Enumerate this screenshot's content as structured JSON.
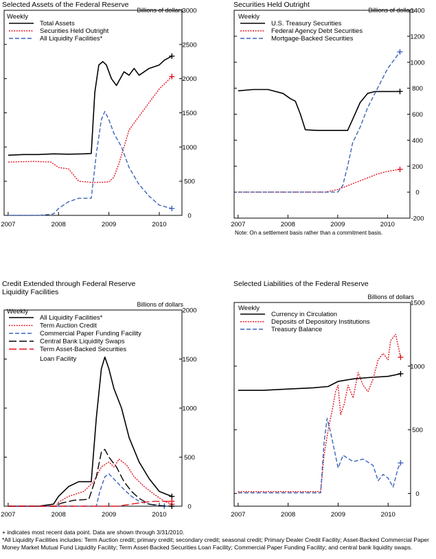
{
  "colors": {
    "black": "#000000",
    "red": "#e0141e",
    "blue": "#3b63b8"
  },
  "footnote_plus": "+ indicates most recent data point. Data are shown through 3/31/2010.",
  "footnote_liq": "*All Liquidity Facilities includes: Term Auction credit; primary credit; secondary credit; seasonal credit; Primary Dealer Credit Facility; Asset-Backed Commercial Paper Money Market Mutual Fund Liquidity Facility; Term Asset-Backed Securities Loan Facility; Commercial Paper Funding Facility; and central bank liquidity swaps.",
  "chart_data": [
    {
      "type": "line",
      "title": "Selected Assets of the Federal Reserve",
      "units": "Billions of dollars",
      "frequency": "Weekly",
      "ylim": [
        0,
        3000
      ],
      "yticks": [
        0,
        500,
        1000,
        1500,
        2000,
        2500,
        3000
      ],
      "xticks": [
        "2007",
        "2008",
        "2009",
        "2010"
      ],
      "series": [
        {
          "name": "Total Assets",
          "color": "black",
          "dash": "solid",
          "x": [
            2007.0,
            2007.3,
            2007.6,
            2007.9,
            2008.2,
            2008.5,
            2008.65,
            2008.72,
            2008.8,
            2008.88,
            2008.95,
            2009.05,
            2009.15,
            2009.3,
            2009.4,
            2009.5,
            2009.6,
            2009.8,
            2010.0,
            2010.1,
            2010.25
          ],
          "y": [
            880,
            890,
            890,
            900,
            895,
            900,
            905,
            1800,
            2200,
            2250,
            2200,
            2000,
            1900,
            2100,
            2050,
            2150,
            2050,
            2150,
            2200,
            2270,
            2330
          ]
        },
        {
          "name": "Securities Held Outright",
          "color": "red",
          "dash": "dotted",
          "x": [
            2007.0,
            2007.5,
            2007.85,
            2008.0,
            2008.2,
            2008.4,
            2008.7,
            2009.0,
            2009.1,
            2009.2,
            2009.3,
            2009.4,
            2009.6,
            2009.8,
            2010.0,
            2010.25
          ],
          "y": [
            780,
            790,
            780,
            700,
            680,
            500,
            480,
            490,
            560,
            760,
            1000,
            1250,
            1450,
            1650,
            1850,
            2030
          ]
        },
        {
          "name": "All Liquidity Facilities*",
          "color": "blue",
          "dash": "dashed",
          "x": [
            2007.0,
            2007.6,
            2007.9,
            2008.0,
            2008.2,
            2008.4,
            2008.65,
            2008.75,
            2008.85,
            2008.92,
            2009.0,
            2009.1,
            2009.25,
            2009.4,
            2009.6,
            2009.8,
            2010.0,
            2010.25
          ],
          "y": [
            0,
            0,
            20,
            100,
            200,
            250,
            250,
            900,
            1400,
            1520,
            1400,
            1200,
            1000,
            700,
            450,
            280,
            150,
            100
          ]
        }
      ]
    },
    {
      "type": "line",
      "title": "Securities Held Outright",
      "units": "Billions of dollars",
      "frequency": "Weekly",
      "ylim": [
        -200,
        1400
      ],
      "yticks": [
        -200,
        0,
        200,
        400,
        600,
        800,
        1000,
        1200,
        1400
      ],
      "xticks": [
        "2007",
        "2008",
        "2009",
        "2010"
      ],
      "note": "Note: On a settlement basis rather than a commitment basis.",
      "series": [
        {
          "name": "U.S. Treasury Securities",
          "color": "black",
          "dash": "solid",
          "x": [
            2007.0,
            2007.3,
            2007.6,
            2007.9,
            2008.05,
            2008.15,
            2008.25,
            2008.35,
            2008.6,
            2008.9,
            2009.2,
            2009.3,
            2009.45,
            2009.6,
            2009.75,
            2010.25
          ],
          "y": [
            780,
            790,
            790,
            760,
            720,
            700,
            600,
            480,
            475,
            475,
            475,
            560,
            690,
            760,
            775,
            775
          ]
        },
        {
          "name": "Federal Agency Debt Securities",
          "color": "red",
          "dash": "dotted",
          "x": [
            2007.0,
            2008.75,
            2009.0,
            2009.2,
            2009.4,
            2009.6,
            2009.8,
            2010.0,
            2010.25
          ],
          "y": [
            0,
            0,
            20,
            50,
            80,
            110,
            140,
            160,
            175
          ]
        },
        {
          "name": "Mortgage-Backed Securities",
          "color": "blue",
          "dash": "dashed",
          "x": [
            2007.0,
            2009.0,
            2009.1,
            2009.2,
            2009.3,
            2009.45,
            2009.6,
            2009.8,
            2010.0,
            2010.25
          ],
          "y": [
            0,
            0,
            50,
            200,
            380,
            500,
            650,
            800,
            950,
            1080
          ]
        }
      ]
    },
    {
      "type": "line",
      "title": "Credit Extended through Federal Reserve Liquidity Facilities",
      "title_lines": [
        "Credit Extended through Federal Reserve",
        "Liquidity Facilities"
      ],
      "units": "Billions of dollars",
      "frequency": "Weekly",
      "ylim": [
        0,
        2000
      ],
      "yticks": [
        0,
        500,
        1000,
        1500,
        2000
      ],
      "xticks": [
        "2007",
        "2008",
        "2009",
        "2010"
      ],
      "series": [
        {
          "name": "All Liquidity Facilities*",
          "color": "black",
          "dash": "solid",
          "x": [
            2007.0,
            2007.6,
            2007.9,
            2008.0,
            2008.2,
            2008.4,
            2008.65,
            2008.75,
            2008.85,
            2008.92,
            2009.0,
            2009.1,
            2009.25,
            2009.4,
            2009.6,
            2009.8,
            2010.0,
            2010.25
          ],
          "y": [
            0,
            0,
            20,
            100,
            200,
            250,
            250,
            900,
            1400,
            1520,
            1400,
            1200,
            1000,
            700,
            450,
            280,
            150,
            100
          ]
        },
        {
          "name": "Term Auction Credit",
          "color": "red",
          "dash": "dotted",
          "x": [
            2007.0,
            2007.95,
            2008.0,
            2008.2,
            2008.5,
            2008.7,
            2008.85,
            2009.0,
            2009.1,
            2009.2,
            2009.35,
            2009.5,
            2009.7,
            2009.9,
            2010.1,
            2010.25
          ],
          "y": [
            0,
            0,
            40,
            100,
            150,
            250,
            400,
            450,
            400,
            480,
            420,
            300,
            200,
            120,
            50,
            20
          ]
        },
        {
          "name": "Commercial Paper Funding Facility",
          "color": "blue",
          "dash": "dashed",
          "x": [
            2007.0,
            2008.75,
            2008.82,
            2008.92,
            2009.0,
            2009.15,
            2009.3,
            2009.45,
            2009.6,
            2009.8,
            2010.0,
            2010.1
          ],
          "y": [
            0,
            0,
            150,
            300,
            330,
            250,
            170,
            100,
            50,
            20,
            10,
            0
          ]
        },
        {
          "name": "Central Bank Liquidity Swaps",
          "color": "black",
          "dash": "longdash",
          "x": [
            2007.0,
            2007.95,
            2008.05,
            2008.3,
            2008.6,
            2008.75,
            2008.85,
            2008.92,
            2009.0,
            2009.15,
            2009.3,
            2009.45,
            2009.6,
            2009.8,
            2010.0,
            2010.25
          ],
          "y": [
            0,
            0,
            30,
            60,
            70,
            300,
            550,
            580,
            500,
            400,
            250,
            150,
            80,
            20,
            5,
            0
          ]
        },
        {
          "name": "Term Asset-Backed Securities Loan Facility",
          "name_lines": [
            "Term Asset-Backed Securities",
            "Loan Facility"
          ],
          "color": "red",
          "dash": "longdash",
          "x": [
            2007.0,
            2009.2,
            2009.3,
            2009.5,
            2009.7,
            2009.9,
            2010.1,
            2010.25
          ],
          "y": [
            0,
            0,
            10,
            25,
            40,
            50,
            50,
            50
          ]
        }
      ]
    },
    {
      "type": "line",
      "title": "Selected Liabilities of the Federal Reserve",
      "units": "Billions of dollars",
      "frequency": "Weekly",
      "ylim": [
        -100,
        1500
      ],
      "yticks": [
        0,
        500,
        1000,
        1500
      ],
      "xticks": [
        "2007",
        "2008",
        "2009",
        "2010"
      ],
      "series": [
        {
          "name": "Currency in Circulation",
          "color": "black",
          "dash": "solid",
          "x": [
            2007.0,
            2007.5,
            2008.0,
            2008.5,
            2008.8,
            2009.0,
            2009.3,
            2009.6,
            2010.0,
            2010.25
          ],
          "y": [
            810,
            810,
            820,
            830,
            840,
            880,
            900,
            910,
            920,
            940
          ]
        },
        {
          "name": "Deposits of Depository Institutions",
          "color": "red",
          "dash": "dotted",
          "x": [
            2007.0,
            2008.0,
            2008.65,
            2008.72,
            2008.8,
            2008.88,
            2008.95,
            2009.0,
            2009.05,
            2009.12,
            2009.2,
            2009.3,
            2009.4,
            2009.5,
            2009.6,
            2009.7,
            2009.8,
            2009.9,
            2010.0,
            2010.05,
            2010.15,
            2010.25
          ],
          "y": [
            15,
            15,
            15,
            300,
            500,
            650,
            800,
            850,
            620,
            700,
            850,
            750,
            950,
            850,
            800,
            900,
            1050,
            1100,
            1050,
            1200,
            1250,
            1070
          ]
        },
        {
          "name": "Treasury Balance",
          "color": "blue",
          "dash": "dashed",
          "x": [
            2007.0,
            2008.65,
            2008.72,
            2008.78,
            2008.85,
            2008.92,
            2009.0,
            2009.1,
            2009.3,
            2009.5,
            2009.7,
            2009.8,
            2009.9,
            2010.0,
            2010.1,
            2010.2,
            2010.25
          ],
          "y": [
            5,
            5,
            400,
            590,
            480,
            350,
            200,
            300,
            250,
            270,
            220,
            100,
            150,
            120,
            50,
            200,
            240
          ]
        }
      ]
    }
  ]
}
